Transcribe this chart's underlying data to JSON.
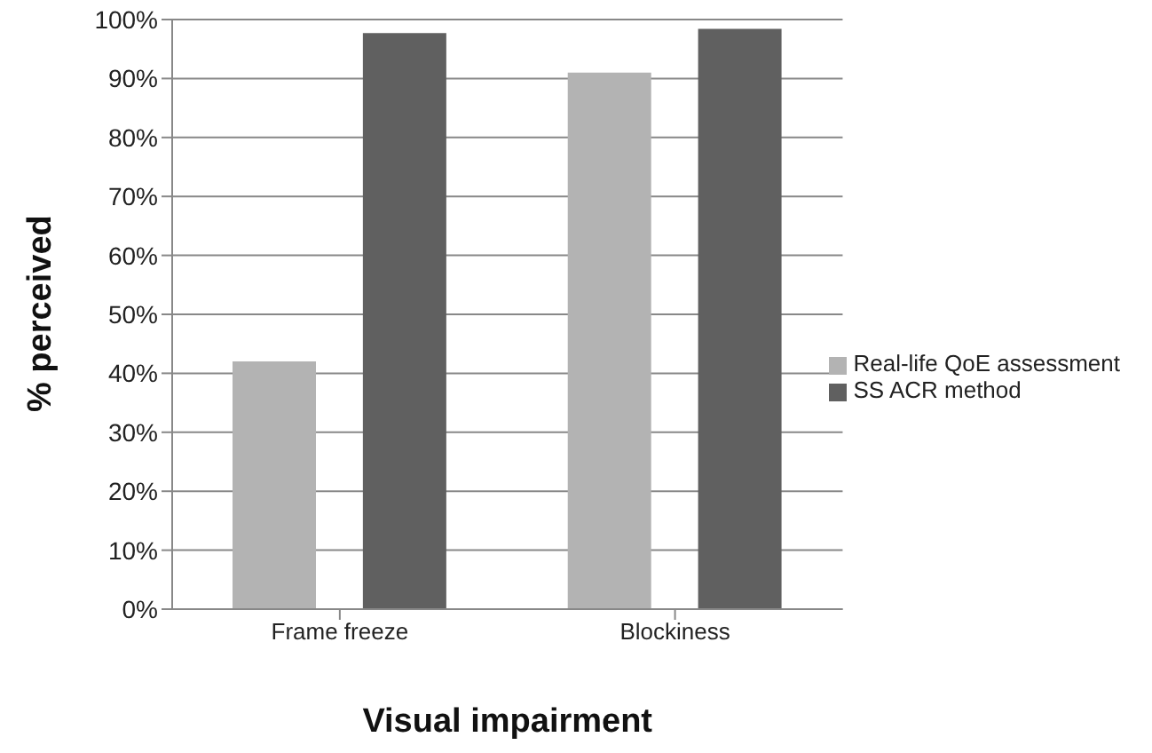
{
  "chart_data": {
    "type": "bar",
    "categories": [
      "Frame freeze",
      "Blockiness"
    ],
    "xlabel": "Visual impairment",
    "ylabel": "% perceived",
    "series": [
      {
        "name": "Real-life QoE assessment",
        "color": "#b3b3b3",
        "values": [
          42,
          91
        ]
      },
      {
        "name": "SS ACR method",
        "color": "#606060",
        "values": [
          97.7,
          98.4
        ]
      }
    ],
    "ylim": [
      0,
      100
    ],
    "yticks": [
      {
        "value": 0,
        "label": "0%"
      },
      {
        "value": 10,
        "label": "10%"
      },
      {
        "value": 20,
        "label": "20%"
      },
      {
        "value": 30,
        "label": "30%"
      },
      {
        "value": 40,
        "label": "40%"
      },
      {
        "value": 50,
        "label": "50%"
      },
      {
        "value": 60,
        "label": "60%"
      },
      {
        "value": 70,
        "label": "70%"
      },
      {
        "value": 80,
        "label": "80%"
      },
      {
        "value": 90,
        "label": "90%"
      },
      {
        "value": 100,
        "label": "100%"
      }
    ],
    "grid": "y",
    "legend": "right"
  }
}
